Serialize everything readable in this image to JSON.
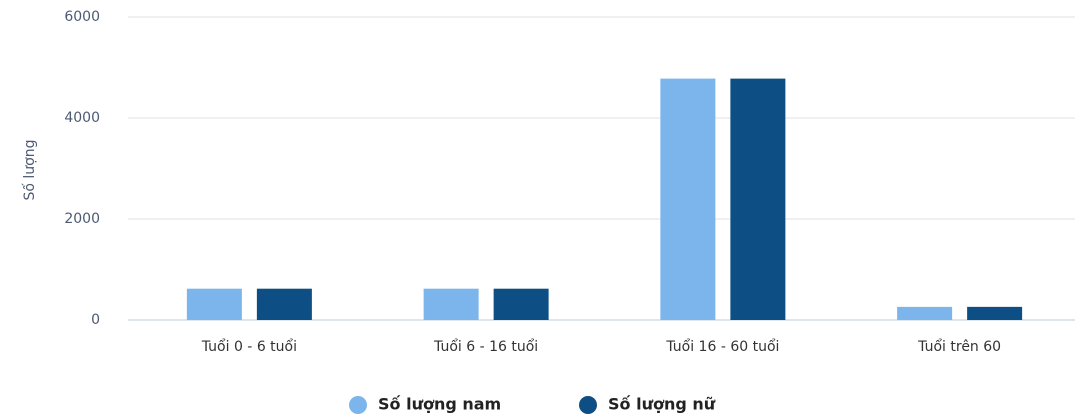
{
  "chart_data": {
    "type": "bar",
    "categories": [
      "Tuổi 0 - 6 tuổi",
      "Tuổi 6 - 16 tuổi",
      "Tuổi 16 - 60 tuổi",
      "Tuổi trên 60"
    ],
    "series": [
      {
        "name": "Số lượng nam",
        "color": "#7cb5ec",
        "values": [
          620,
          620,
          4780,
          260
        ]
      },
      {
        "name": "Số lượng nữ",
        "color": "#0d4f84",
        "values": [
          620,
          620,
          4780,
          260
        ]
      }
    ],
    "y_label": "Số lượng",
    "ylim": [
      0,
      6000
    ],
    "yticks": [
      0,
      2000,
      4000,
      6000
    ],
    "grid": true,
    "legend": "bottom"
  }
}
